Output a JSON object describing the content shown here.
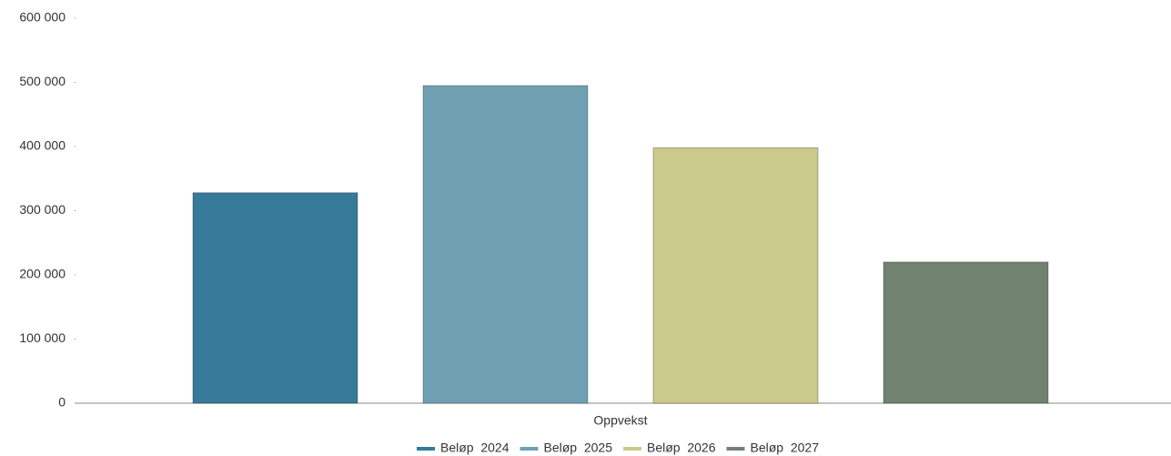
{
  "chart_data": {
    "type": "bar",
    "categories": [
      "Oppvekst"
    ],
    "series": [
      {
        "name": "Beløp  2024",
        "color": "#377a99",
        "values": [
          328000
        ]
      },
      {
        "name": "Beløp  2025",
        "color": "#6fa0b2",
        "values": [
          495000
        ]
      },
      {
        "name": "Beløp  2026",
        "color": "#cbca8d",
        "values": [
          398000
        ]
      },
      {
        "name": "Beløp  2027",
        "color": "#718270",
        "values": [
          220000
        ]
      }
    ],
    "ylim": [
      0,
      600000
    ],
    "yticks": [
      0,
      {
        "value": 100000,
        "label": "100 000"
      },
      {
        "value": 200000,
        "label": "200 000"
      },
      {
        "value": 300000,
        "label": "300 000"
      },
      {
        "value": 400000,
        "label": "400 000"
      },
      {
        "value": 500000,
        "label": "500 000"
      },
      {
        "value": 600000,
        "label": "600 000"
      }
    ],
    "legend": "bottom"
  }
}
